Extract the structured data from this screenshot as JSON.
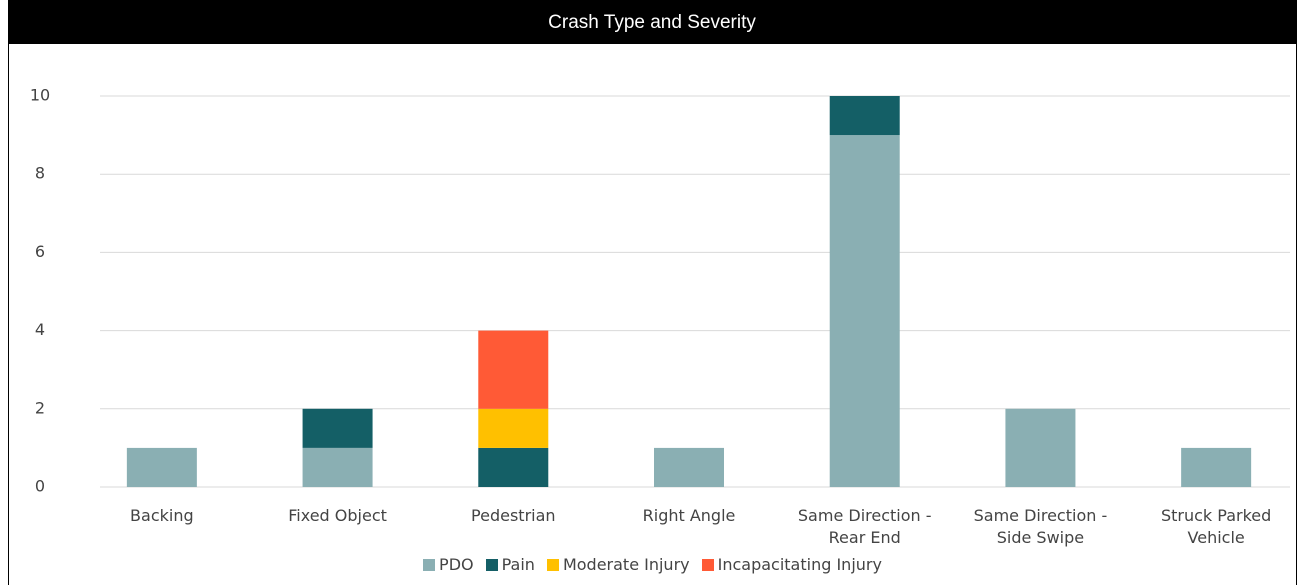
{
  "chart_data": {
    "type": "stacked_bar",
    "title": "Crash Type and Severity",
    "categories": [
      "Backing",
      "Fixed Object",
      "Pedestrian",
      "Right Angle",
      "Same Direction - Rear End",
      "Same Direction - Side Swipe",
      "Struck Parked Vehicle"
    ],
    "series": [
      {
        "name": "PDO",
        "color": "#8aafb3",
        "values": [
          1,
          1,
          0,
          1,
          9,
          2,
          1
        ]
      },
      {
        "name": "Pain",
        "color": "#145f66",
        "values": [
          0,
          1,
          1,
          0,
          1,
          0,
          0
        ]
      },
      {
        "name": "Moderate Injury",
        "color": "#ffc000",
        "values": [
          0,
          0,
          1,
          0,
          0,
          0,
          0
        ]
      },
      {
        "name": "Incapacitating Injury",
        "color": "#ff5a36",
        "values": [
          0,
          0,
          2,
          0,
          0,
          0,
          0
        ]
      }
    ],
    "ylim": [
      0,
      10
    ],
    "yticks": [
      0,
      2,
      4,
      6,
      8,
      10
    ],
    "grid": true,
    "legend": "bottom"
  }
}
